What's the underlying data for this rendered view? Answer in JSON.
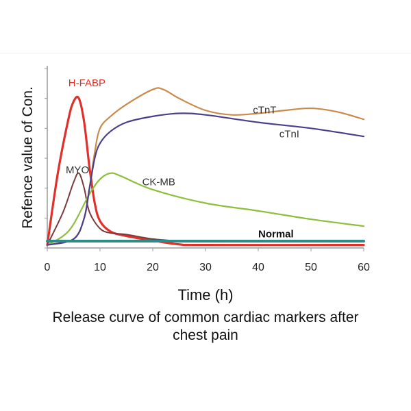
{
  "chart_data": {
    "type": "line",
    "title": "",
    "caption": "Release curve of common cardiac markers after chest pain",
    "xlabel": "Time (h)",
    "ylabel": "Refence value of Con.",
    "xlim": [
      0,
      60
    ],
    "ylim": [
      0,
      6
    ],
    "xticks": [
      0,
      10,
      20,
      30,
      40,
      50,
      60
    ],
    "grid": false,
    "series": [
      {
        "name": "H-FABP",
        "color": "#e0302a",
        "width": 3.2,
        "x": [
          0,
          2,
          4,
          5,
          6,
          7,
          8,
          9,
          10,
          12,
          15,
          20,
          25,
          30,
          60
        ],
        "y": [
          0.1,
          2.5,
          4.3,
          4.9,
          5.0,
          4.2,
          2.7,
          1.5,
          0.9,
          0.55,
          0.4,
          0.25,
          0.12,
          0.1,
          0.1
        ]
      },
      {
        "name": "MYO",
        "color": "#7a3a3a",
        "width": 2,
        "x": [
          0,
          3,
          5,
          6,
          7,
          8,
          10,
          12,
          15,
          20,
          25
        ],
        "y": [
          0.1,
          1.2,
          2.2,
          2.5,
          2.0,
          1.2,
          0.65,
          0.5,
          0.45,
          0.3,
          0.23
        ]
      },
      {
        "name": "CK-MB",
        "color": "#8cbf3a",
        "width": 2.2,
        "x": [
          0,
          3,
          5,
          8,
          10,
          12,
          14,
          20,
          30,
          40,
          50,
          60
        ],
        "y": [
          0.1,
          0.4,
          0.8,
          1.8,
          2.3,
          2.5,
          2.4,
          1.95,
          1.5,
          1.24,
          0.96,
          0.73
        ]
      },
      {
        "name": "cTnT",
        "color": "#c98a4a",
        "width": 2.2,
        "x": [
          0,
          5,
          7,
          8,
          9,
          10,
          12,
          15,
          20,
          22,
          25,
          30,
          35,
          40,
          45,
          50,
          55,
          60
        ],
        "y": [
          0.1,
          0.3,
          1.0,
          2.0,
          3.2,
          4.0,
          4.4,
          4.8,
          5.3,
          5.3,
          5.0,
          4.6,
          4.45,
          4.5,
          4.6,
          4.67,
          4.55,
          4.3
        ]
      },
      {
        "name": "cTnI",
        "color": "#4a3f8a",
        "width": 2.2,
        "x": [
          0,
          5,
          7,
          8,
          9,
          10,
          12,
          15,
          20,
          25,
          30,
          40,
          50,
          60
        ],
        "y": [
          0.1,
          0.3,
          1.0,
          2.0,
          3.0,
          3.5,
          3.9,
          4.2,
          4.4,
          4.5,
          4.45,
          4.2,
          4.0,
          3.73
        ]
      },
      {
        "name": "Normal",
        "color": "#2e8b8b",
        "width": 4,
        "x": [
          0,
          60
        ],
        "y": [
          0.23,
          0.23
        ]
      }
    ],
    "labels": [
      {
        "text": "H-FABP",
        "x": 4,
        "y": 5.4,
        "color": "#e0302a",
        "bold": false
      },
      {
        "text": "MYO",
        "x": 3.5,
        "y": 2.5,
        "color": "#333",
        "bold": false
      },
      {
        "text": "CK-MB",
        "x": 18,
        "y": 2.1,
        "color": "#333",
        "bold": false
      },
      {
        "text": "cTnT",
        "x": 39,
        "y": 4.5,
        "color": "#333",
        "bold": false
      },
      {
        "text": "cTnI",
        "x": 44,
        "y": 3.7,
        "color": "#333",
        "bold": false
      },
      {
        "text": "Normal",
        "x": 40,
        "y": 0.35,
        "color": "#111",
        "bold": true
      }
    ]
  }
}
